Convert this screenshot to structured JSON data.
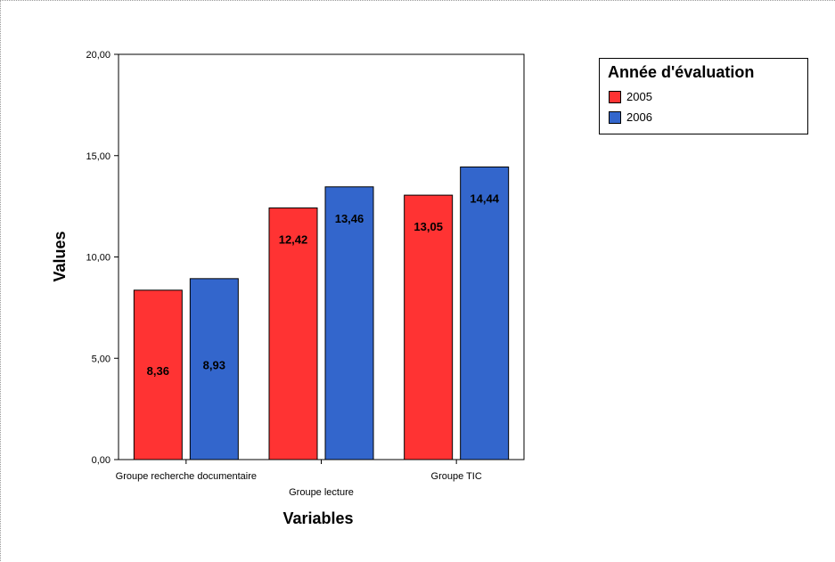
{
  "chart_data": {
    "type": "bar",
    "categories": [
      "Groupe recherche documentaire",
      "Groupe lecture",
      "Groupe TIC"
    ],
    "series": [
      {
        "name": "2005",
        "values": [
          8.36,
          12.42,
          13.05
        ],
        "labels": [
          "8,36",
          "12,42",
          "13,05"
        ],
        "color": "#ff3333"
      },
      {
        "name": "2006",
        "values": [
          8.93,
          13.46,
          14.44
        ],
        "labels": [
          "8,93",
          "13,46",
          "14,44"
        ],
        "color": "#3366cc"
      }
    ],
    "xlabel": "Variables",
    "ylabel": "Values",
    "ylim": [
      0,
      20
    ],
    "yticks": [
      0,
      5,
      10,
      15,
      20
    ],
    "ytick_labels": [
      "0,00",
      "5,00",
      "10,00",
      "15,00",
      "20,00"
    ],
    "grid": false,
    "legend": {
      "title": "Année d'évaluation",
      "position": "top-right"
    }
  }
}
